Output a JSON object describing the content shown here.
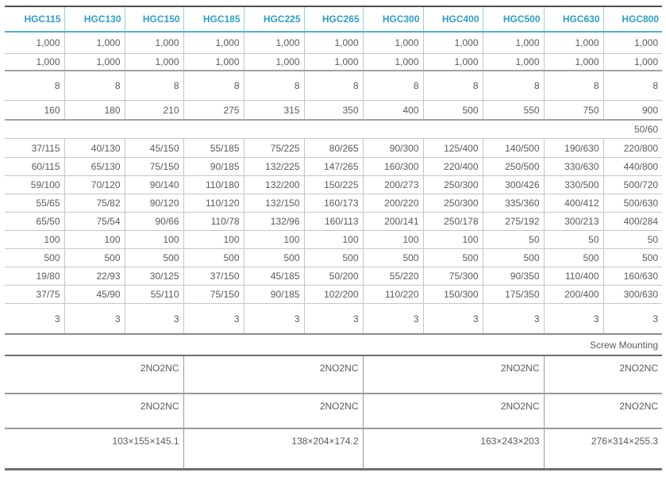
{
  "colors": {
    "header_text": "#2f9dc5",
    "header_line": "#55aed0",
    "header_divider": "#9ad1e2",
    "body_text": "#595a5c",
    "dark_line": "#4d4d4f"
  },
  "table": {
    "columns": [
      "HGC115",
      "HGC130",
      "HGC150",
      "HGC185",
      "HGC225",
      "HGC265",
      "HGC300",
      "HGC400",
      "HGC500",
      "HGC630",
      "HGC800"
    ],
    "rows": [
      {
        "type": "values",
        "cells": [
          "1,000",
          "1,000",
          "1,000",
          "1,000",
          "1,000",
          "1,000",
          "1,000",
          "1,000",
          "1,000",
          "1,000",
          "1,000"
        ]
      },
      {
        "type": "values",
        "cells": [
          "1,000",
          "1,000",
          "1,000",
          "1,000",
          "1,000",
          "1,000",
          "1,000",
          "1,000",
          "1,000",
          "1,000",
          "1,000"
        ]
      },
      {
        "type": "values",
        "cells": [
          "8",
          "8",
          "8",
          "8",
          "8",
          "8",
          "8",
          "8",
          "8",
          "8",
          "8"
        ]
      },
      {
        "type": "values",
        "cells": [
          "160",
          "180",
          "210",
          "275",
          "315",
          "350",
          "400",
          "500",
          "550",
          "750",
          "900"
        ]
      },
      {
        "type": "span",
        "value": "50/60"
      },
      {
        "type": "values",
        "cells": [
          "37/115",
          "40/130",
          "45/150",
          "55/185",
          "75/225",
          "80/265",
          "90/300",
          "125/400",
          "140/500",
          "190/630",
          "220/800"
        ]
      },
      {
        "type": "values",
        "cells": [
          "60/115",
          "65/130",
          "75/150",
          "90/185",
          "132/225",
          "147/265",
          "160/300",
          "220/400",
          "250/500",
          "330/630",
          "440/800"
        ]
      },
      {
        "type": "values",
        "cells": [
          "59/100",
          "70/120",
          "90/140",
          "110/180",
          "132/200",
          "150/225",
          "200/273",
          "250/300",
          "300/426",
          "330/500",
          "500/720"
        ]
      },
      {
        "type": "values",
        "cells": [
          "55/65",
          "75/82",
          "90/120",
          "110/120",
          "132/150",
          "160/173",
          "200/220",
          "250/300",
          "335/360",
          "400/412",
          "500/630"
        ]
      },
      {
        "type": "values",
        "cells": [
          "65/50",
          "75/54",
          "90/66",
          "110/78",
          "132/96",
          "160/113",
          "200/141",
          "250/178",
          "275/192",
          "300/213",
          "400/284"
        ]
      },
      {
        "type": "values",
        "cells": [
          "100",
          "100",
          "100",
          "100",
          "100",
          "100",
          "100",
          "100",
          "50",
          "50",
          "50"
        ]
      },
      {
        "type": "values",
        "cells": [
          "500",
          "500",
          "500",
          "500",
          "500",
          "500",
          "500",
          "500",
          "500",
          "500",
          "500"
        ]
      },
      {
        "type": "values",
        "cells": [
          "19/80",
          "22/93",
          "30/125",
          "37/150",
          "45/185",
          "50/200",
          "55/220",
          "75/300",
          "90/350",
          "110/400",
          "160/630"
        ]
      },
      {
        "type": "values",
        "cells": [
          "37/75",
          "45/90",
          "55/110",
          "75/150",
          "90/185",
          "102/200",
          "110/220",
          "150/300",
          "175/350",
          "200/400",
          "300/630"
        ]
      },
      {
        "type": "values",
        "cells": [
          "3",
          "3",
          "3",
          "3",
          "3",
          "3",
          "3",
          "3",
          "3",
          "3",
          "3"
        ]
      },
      {
        "type": "span",
        "value": "Screw Mounting"
      },
      {
        "type": "group",
        "cells": [
          "2NO2NC",
          "2NO2NC",
          "2NO2NC",
          "2NO2NC"
        ]
      },
      {
        "type": "group",
        "cells": [
          "2NO2NC",
          "2NO2NC",
          "2NO2NC",
          "2NO2NC"
        ]
      },
      {
        "type": "group",
        "cells": [
          "103×155×145.1",
          "138×204×174.2",
          "163×243×203",
          "276×314×255.3"
        ]
      }
    ]
  }
}
